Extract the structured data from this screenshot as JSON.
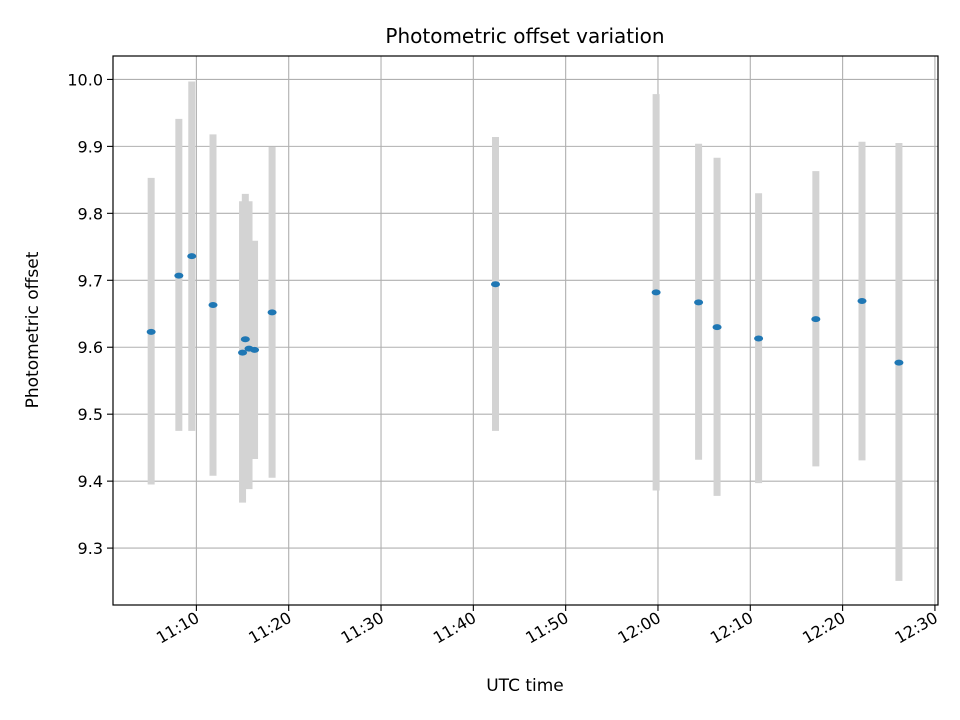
{
  "chart_data": {
    "type": "scatter",
    "title": "Photometric offset variation",
    "xlabel": "UTC time",
    "ylabel": "Photometric offset",
    "x_tick_labels": [
      "11:10",
      "11:20",
      "11:30",
      "11:40",
      "11:50",
      "12:00",
      "12:10",
      "12:20",
      "12:30"
    ],
    "y_tick_labels": [
      "9.3",
      "9.4",
      "9.5",
      "9.6",
      "9.7",
      "9.8",
      "9.9",
      "10.0"
    ],
    "y_ticks": [
      9.3,
      9.4,
      9.5,
      9.6,
      9.7,
      9.8,
      9.9,
      10.0
    ],
    "xlim": [
      "11:00:58",
      "12:30:20"
    ],
    "ylim": [
      9.215,
      10.035
    ],
    "grid": true,
    "marker_color": "#1f77b4",
    "errorbar_color": "#d3d3d3",
    "points": [
      {
        "x": "11:05:06",
        "y": 9.623,
        "ylow": 9.395,
        "yhigh": 9.853
      },
      {
        "x": "11:08:06",
        "y": 9.707,
        "ylow": 9.475,
        "yhigh": 9.941
      },
      {
        "x": "11:09:30",
        "y": 9.736,
        "ylow": 9.475,
        "yhigh": 9.997
      },
      {
        "x": "11:11:48",
        "y": 9.663,
        "ylow": 9.408,
        "yhigh": 9.918
      },
      {
        "x": "11:15:00",
        "y": 9.592,
        "ylow": 9.368,
        "yhigh": 9.818
      },
      {
        "x": "11:15:18",
        "y": 9.612,
        "ylow": 9.395,
        "yhigh": 9.829
      },
      {
        "x": "11:15:42",
        "y": 9.598,
        "ylow": 9.388,
        "yhigh": 9.818
      },
      {
        "x": "11:16:18",
        "y": 9.596,
        "ylow": 9.433,
        "yhigh": 9.759
      },
      {
        "x": "11:18:12",
        "y": 9.652,
        "ylow": 9.405,
        "yhigh": 9.899
      },
      {
        "x": "11:42:24",
        "y": 9.694,
        "ylow": 9.475,
        "yhigh": 9.914
      },
      {
        "x": "11:59:48",
        "y": 9.682,
        "ylow": 9.386,
        "yhigh": 9.978
      },
      {
        "x": "12:04:24",
        "y": 9.667,
        "ylow": 9.432,
        "yhigh": 9.904
      },
      {
        "x": "12:06:24",
        "y": 9.63,
        "ylow": 9.378,
        "yhigh": 9.883
      },
      {
        "x": "12:10:54",
        "y": 9.613,
        "ylow": 9.397,
        "yhigh": 9.83
      },
      {
        "x": "12:17:06",
        "y": 9.642,
        "ylow": 9.422,
        "yhigh": 9.863
      },
      {
        "x": "12:22:06",
        "y": 9.669,
        "ylow": 9.431,
        "yhigh": 9.907
      },
      {
        "x": "12:26:06",
        "y": 9.577,
        "ylow": 9.251,
        "yhigh": 9.905
      }
    ]
  }
}
